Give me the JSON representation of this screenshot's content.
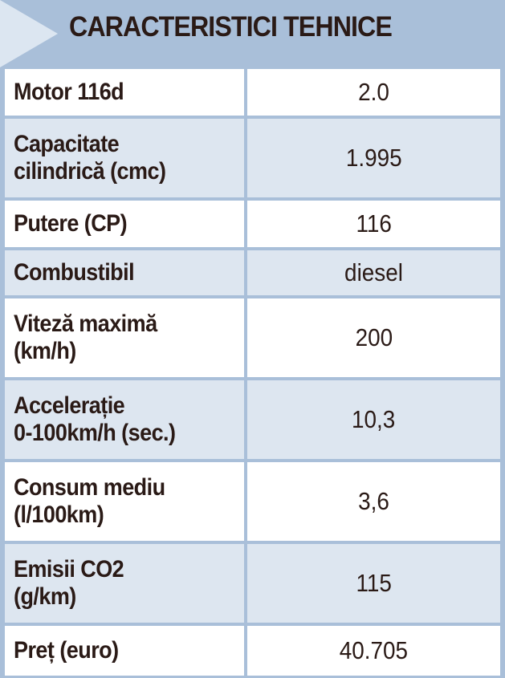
{
  "header": {
    "title": "CARACTERISTICI TEHNICE"
  },
  "colors": {
    "header_bg": "#a9bfd9",
    "row_light": "#ffffff",
    "row_tint": "#dde6f0",
    "text": "#2a1a16"
  },
  "rows": [
    {
      "label": "Motor 116d",
      "value": "2.0"
    },
    {
      "label": "Capacitate\ncilindrică (cmc)",
      "value": "1.995"
    },
    {
      "label": "Putere (CP)",
      "value": "116"
    },
    {
      "label": "Combustibil",
      "value": "diesel"
    },
    {
      "label": "Viteză maximă\n(km/h)",
      "value": "200"
    },
    {
      "label": "Accelerație\n0-100km/h (sec.)",
      "value": "10,3"
    },
    {
      "label": "Consum mediu\n(l/100km)",
      "value": "3,6"
    },
    {
      "label": "Emisii CO2\n(g/km)",
      "value": "115"
    },
    {
      "label": "Preț (euro)",
      "value": "40.705"
    }
  ]
}
